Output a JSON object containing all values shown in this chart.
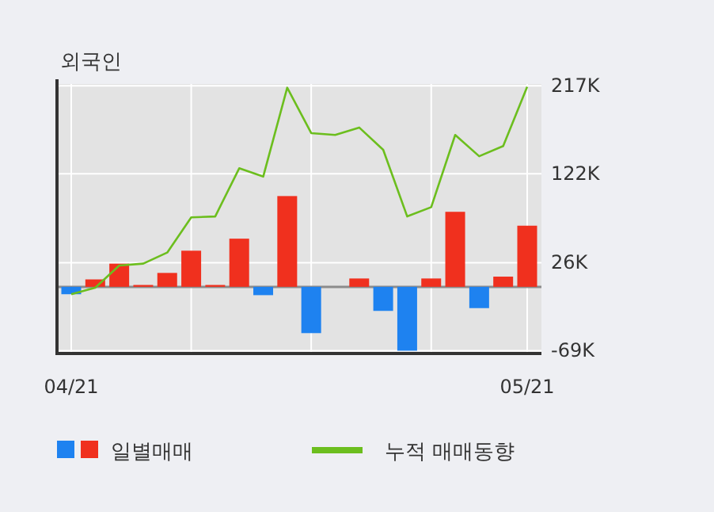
{
  "chart_data": {
    "type": "bar",
    "title": "외국인",
    "categories": [
      "04/21",
      null,
      null,
      null,
      null,
      null,
      null,
      null,
      null,
      null,
      null,
      null,
      null,
      null,
      null,
      null,
      null,
      null,
      null,
      "05/21"
    ],
    "series": [
      {
        "name": "일별매매",
        "colors": [
          "#1e82f0",
          "#f0301e",
          "#f0301e",
          "#f0301e",
          "#f0301e",
          "#f0301e",
          "#f0301e",
          "#f0301e",
          "#1e82f0",
          "#f0301e",
          "#1e82f0",
          "#f0301e",
          "#f0301e",
          "#1e82f0",
          "#1e82f0",
          "#f0301e",
          "#f0301e",
          "#1e82f0",
          "#f0301e",
          "#f0301e"
        ],
        "values": [
          -8,
          8,
          25,
          2,
          15,
          39,
          2,
          52,
          -9,
          98,
          -50,
          0,
          9,
          -26,
          -69,
          9,
          81,
          -23,
          11,
          66
        ]
      },
      {
        "name": "누적 매매동향",
        "type": "line",
        "color": "#6cbe1e",
        "values": [
          -8,
          -1,
          23,
          25,
          37,
          75,
          76,
          128,
          119,
          215,
          166,
          164,
          172,
          148,
          76,
          86,
          164,
          141,
          152,
          216
        ]
      }
    ],
    "ylim": [
      -72,
      219
    ],
    "yticks": [
      {
        "value": 217,
        "label": "217K"
      },
      {
        "value": 122,
        "label": "122K"
      },
      {
        "value": 26,
        "label": "26K"
      },
      {
        "value": -69,
        "label": "-69K"
      }
    ],
    "grid": true,
    "legend": "bottom"
  }
}
